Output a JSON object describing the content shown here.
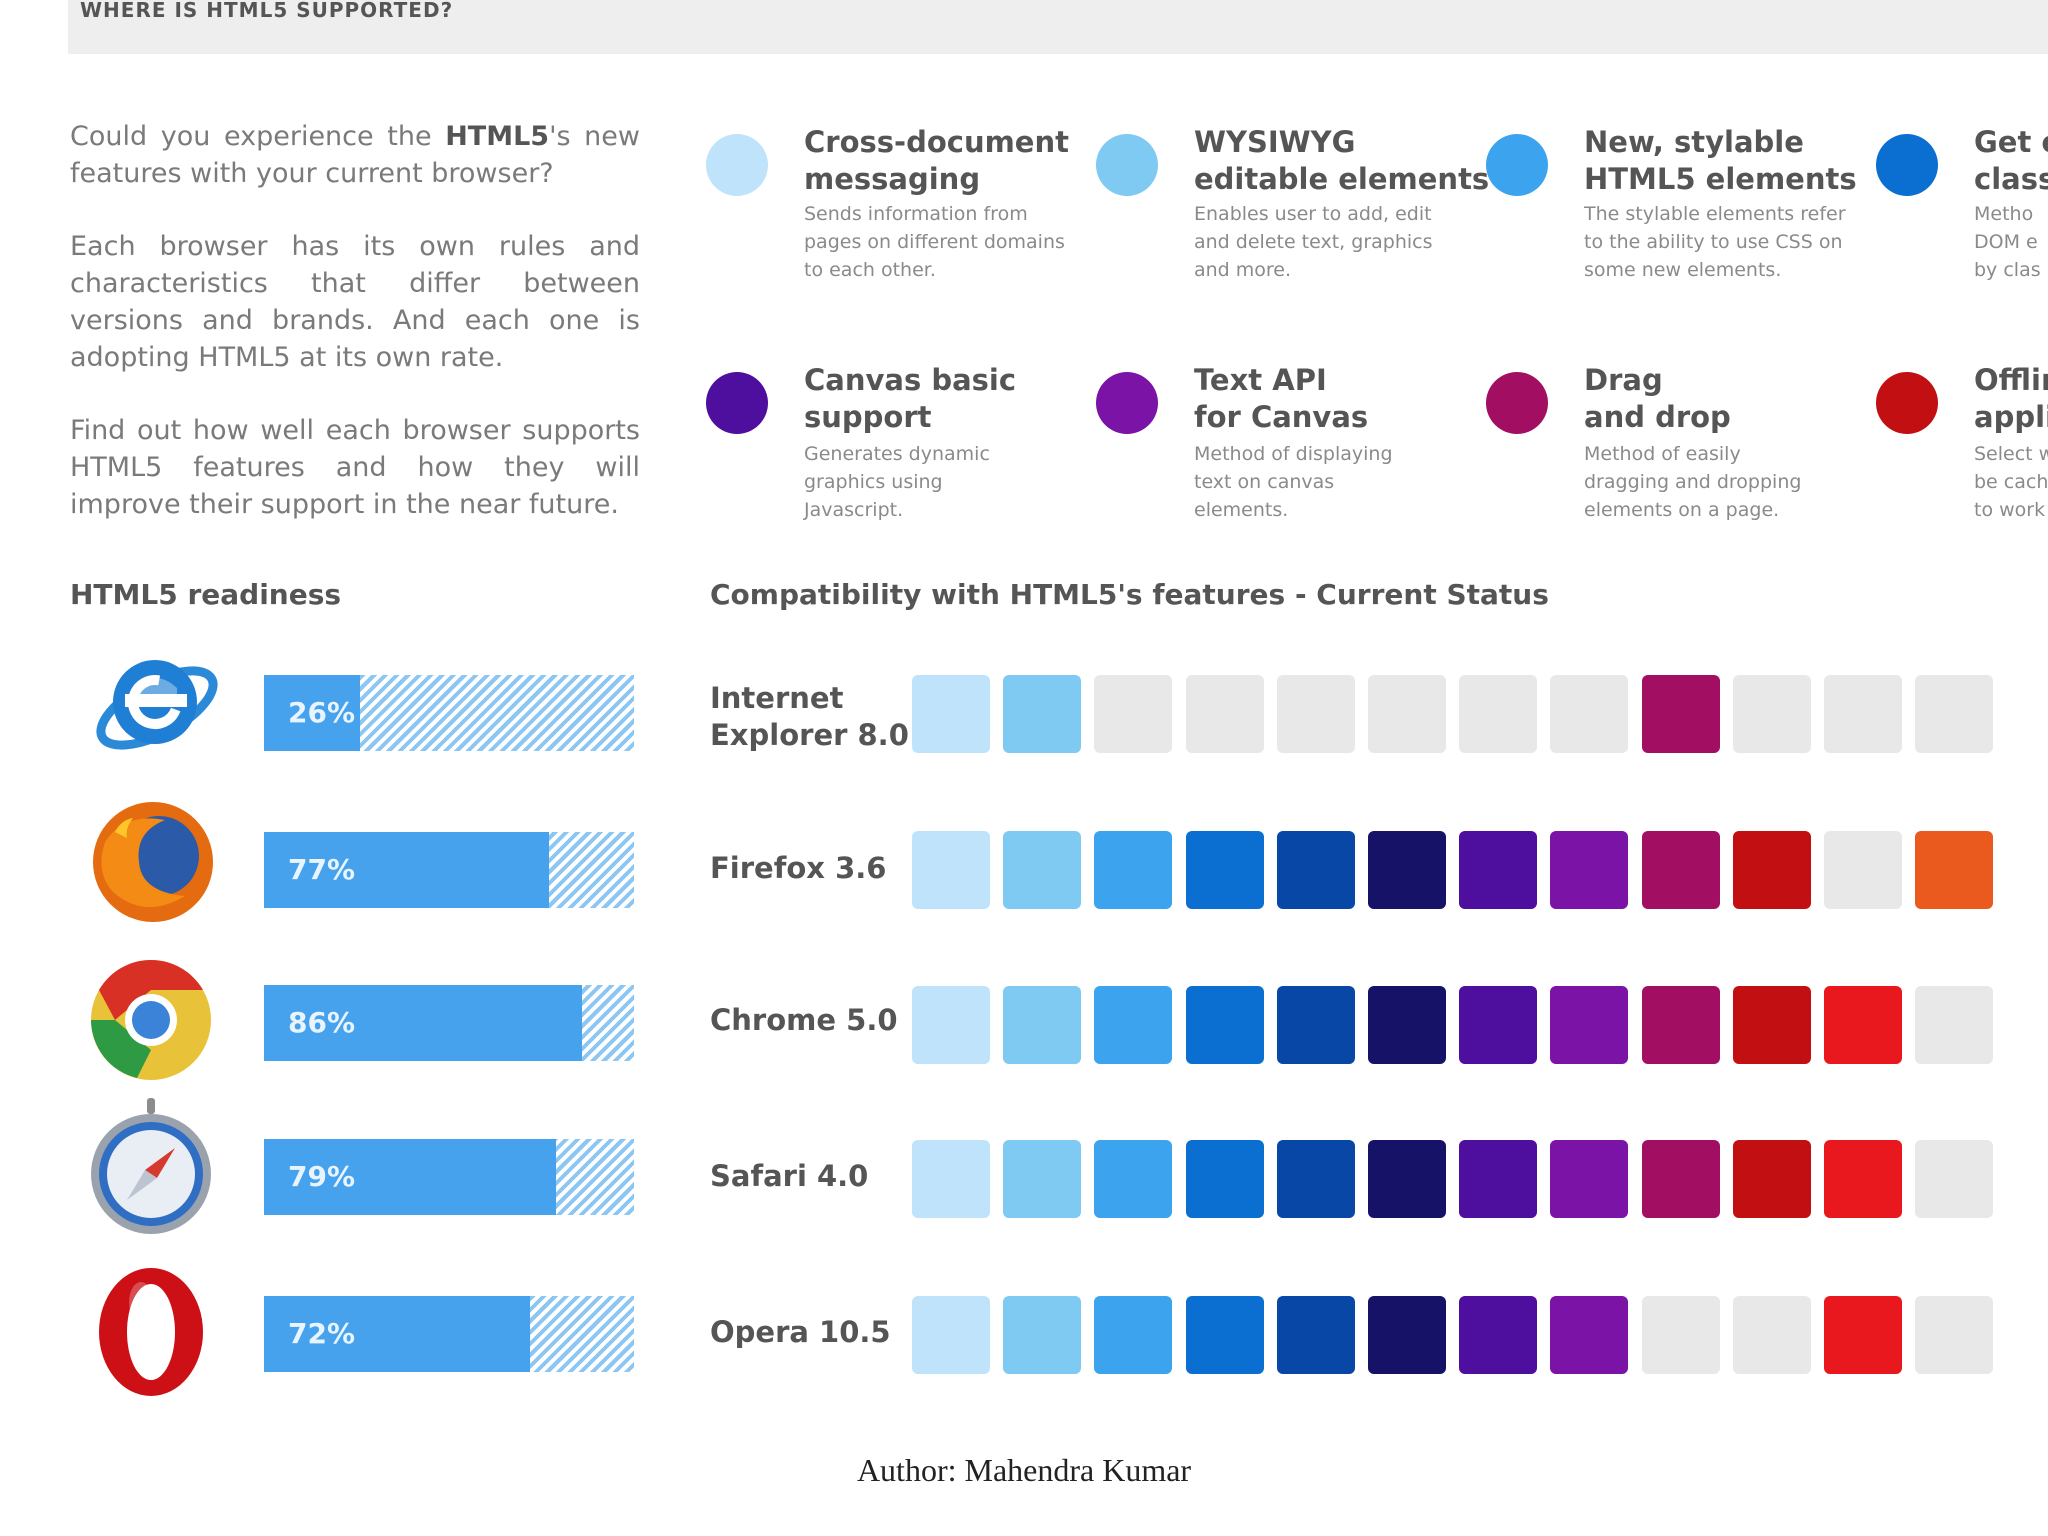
{
  "top_banner": {
    "label": "WHERE IS HTML5 SUPPORTED?"
  },
  "intro": {
    "p1_pre": "Could you experience the ",
    "p1_bold": "HTML5",
    "p1_post": "'s new features with your current browser?",
    "p2": "Each browser has its own rules and characteristics that differ between versions and brands. And each one is adopting HTML5 at its own rate.",
    "p3": "Find out how well each browser supports HTML5 features and how they will improve their support in the near future."
  },
  "features": [
    {
      "title": "Cross-document\nmessaging",
      "desc": "Sends information from\npages on different domains\nto each other.",
      "color": "#bfe3fa"
    },
    {
      "title": "WYSIWYG\neditable elements",
      "desc": "Enables user to add, edit\nand delete text, graphics\nand more.",
      "color": "#7fcaf3"
    },
    {
      "title": "New, stylable\nHTML5 elements",
      "desc": "The stylable elements refer\nto the ability to use CSS on\nsome new elements.",
      "color": "#3ca4ee"
    },
    {
      "title": "Get e\nclass",
      "desc": "Metho\nDOM e\nby clas",
      "color": "#0a6fd0"
    },
    {
      "title": "Canvas basic\nsupport",
      "desc": "Generates dynamic\ngraphics using\nJavascript.",
      "color": "#4e0f9e"
    },
    {
      "title": "Text API\nfor Canvas",
      "desc": "Method of displaying\ntext on canvas\nelements.",
      "color": "#7a13a6"
    },
    {
      "title": "Drag\nand drop",
      "desc": "Method of easily\ndragging and dropping\nelements on a page.",
      "color": "#a20e62"
    },
    {
      "title": "Offlin\nappli",
      "desc": "Select w\nbe cach\nto work",
      "color": "#c10f12"
    }
  ],
  "readiness_title": "HTML5 readiness",
  "compat_title": "Compatibility with HTML5's features - Current Status",
  "author": "Author: Mahendra Kumar",
  "icons": [
    "ie-logo-icon",
    "firefox-logo-icon",
    "chrome-logo-icon",
    "safari-logo-icon",
    "opera-logo-icon"
  ],
  "chart_data": [
    {
      "type": "bar",
      "title": "HTML5 readiness",
      "categories": [
        "Internet Explorer 8.0",
        "Firefox 3.6",
        "Chrome 5.0",
        "Safari 4.0",
        "Opera 10.5"
      ],
      "values": [
        26,
        77,
        86,
        79,
        72
      ],
      "labels": [
        "26%",
        "77%",
        "86%",
        "79%",
        "72%"
      ],
      "ylim": [
        0,
        100
      ]
    },
    {
      "type": "heatmap",
      "title": "Compatibility with HTML5's features - Current Status",
      "rows": [
        "Internet\nExplorer 8.0",
        "Firefox 3.6",
        "Chrome 5.0",
        "Safari 4.0",
        "Opera 10.5"
      ],
      "feature_colors": [
        "#bfe3fa",
        "#7fcaf3",
        "#3ca4ee",
        "#0a6fd0",
        "#0847a6",
        "#161267",
        "#4e0f9e",
        "#7a13a6",
        "#a20e62",
        "#c10f12",
        "#e8181e",
        "#ea5a1f"
      ],
      "unsupported_color": "#e8e8e8",
      "support": [
        [
          1,
          1,
          0,
          0,
          0,
          0,
          0,
          0,
          1,
          0,
          0,
          0
        ],
        [
          1,
          1,
          1,
          1,
          1,
          1,
          1,
          1,
          1,
          1,
          0,
          1
        ],
        [
          1,
          1,
          1,
          1,
          1,
          1,
          1,
          1,
          1,
          1,
          1,
          0
        ],
        [
          1,
          1,
          1,
          1,
          1,
          1,
          1,
          1,
          1,
          1,
          1,
          0
        ],
        [
          1,
          1,
          1,
          1,
          1,
          1,
          1,
          1,
          0,
          0,
          1,
          0
        ]
      ]
    }
  ]
}
